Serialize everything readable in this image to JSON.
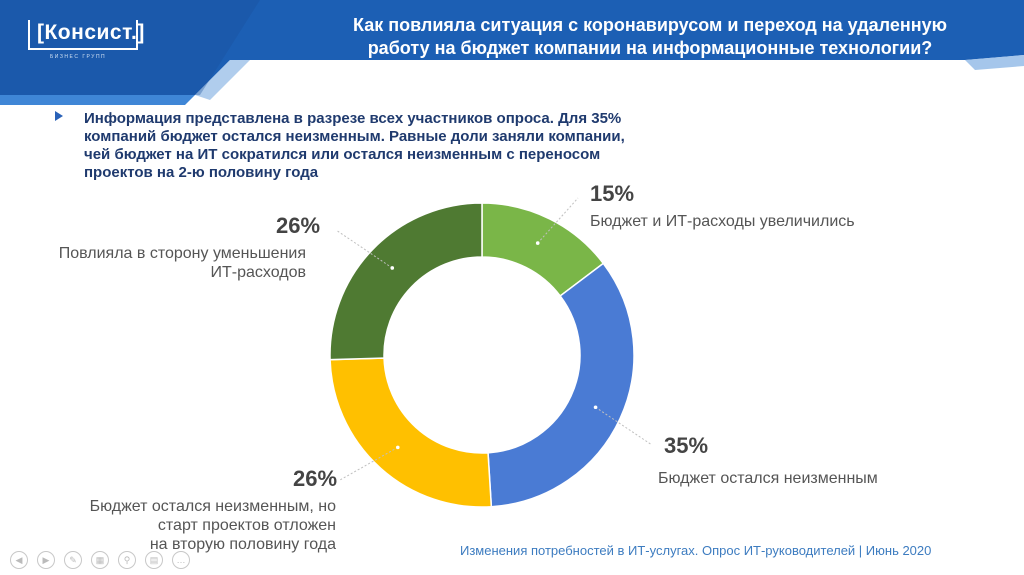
{
  "header": {
    "logo_text": "[Консист.]",
    "logo_sub": "БИЗНЕС ГРУПП",
    "title_line1": "Как повлияла ситуация с коронавирусом и переход на удаленную",
    "title_line2": "работу на бюджет компании на информационные технологии?"
  },
  "subtitle": {
    "line1": "Информация представлена в разрезе всех участников опроса. Для 35%",
    "line2": "компаний бюджет остался неизменным. Равные доли заняли компании,",
    "line3": "чей бюджет на ИТ сократился или остался неизменным с переносом",
    "line4": "проектов на 2-ю половину года"
  },
  "chart_data": {
    "type": "pie",
    "style": "donut",
    "categories": [
      "Бюджет и ИТ-расходы увеличились",
      "Бюджет остался неизменным",
      "Бюджет остался неизменным, но старт проектов отложен на вторую половину года",
      "Повлияла в сторону уменьшения ИТ-расходов"
    ],
    "values": [
      15,
      35,
      26,
      26
    ],
    "labels": [
      "15%",
      "35%",
      "26%",
      "26%"
    ],
    "colors": [
      "#7ab648",
      "#4a7bd4",
      "#ffc000",
      "#4f7a32"
    ]
  },
  "labels": {
    "s1_pct": "15%",
    "s1_text": "Бюджет и ИТ-расходы увеличились",
    "s2_pct": "35%",
    "s2_text": "Бюджет остался неизменным",
    "s3_pct": "26%",
    "s3_line1": "Бюджет остался неизменным, но",
    "s3_line2": "старт проектов отложен",
    "s3_line3": "на вторую половину года",
    "s4_pct": "26%",
    "s4_line1": "Повлияла в сторону уменьшения",
    "s4_line2": "ИТ-расходов"
  },
  "footer": {
    "source": "Изменения потребностей в ИТ-услугах. Опрос ИТ-руководителей  |  Июнь 2020"
  },
  "colors": {
    "header_blue": "#1c5fb4",
    "header_dark": "#1a4f9a",
    "accent_light": "#8fb8e6"
  }
}
